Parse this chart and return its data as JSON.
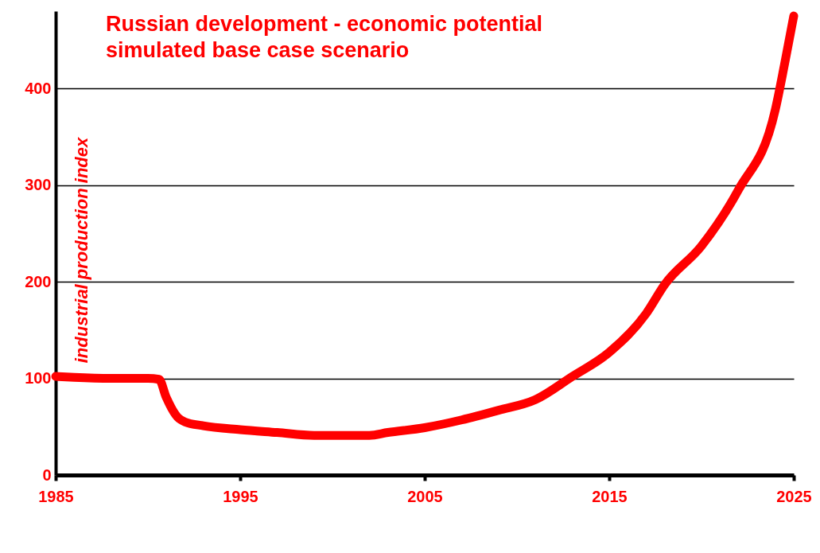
{
  "chart_data": {
    "type": "line",
    "title": "Russian development - economic potential",
    "subtitle": "simulated base case scenario",
    "ylabel": "industrial production index",
    "x": [
      1985,
      1986,
      1988,
      1990,
      1990.6,
      1991,
      1991.6,
      1992,
      1993,
      1995,
      1997,
      1999,
      2002,
      2003,
      2005,
      2007,
      2009,
      2011,
      2013,
      2015,
      2017,
      2018,
      2020,
      2022,
      2024,
      2024.5,
      2025
    ],
    "series": [
      {
        "color": "#ff0000",
        "values": [
          102,
          101,
          100,
          100,
          99,
          80,
          60,
          55,
          51,
          47,
          44,
          41,
          41,
          44,
          49,
          57,
          67,
          78,
          102,
          127,
          167,
          197,
          237,
          295,
          378,
          425,
          475
        ]
      }
    ],
    "xlim": [
      1985,
      2025
    ],
    "xticks": [
      1985,
      1995,
      2005,
      2015,
      2025
    ],
    "ylim": [
      0,
      480
    ],
    "yticks": [
      0,
      100,
      200,
      300,
      400
    ],
    "grid": "y",
    "line_style": "solid",
    "marker": "none"
  }
}
